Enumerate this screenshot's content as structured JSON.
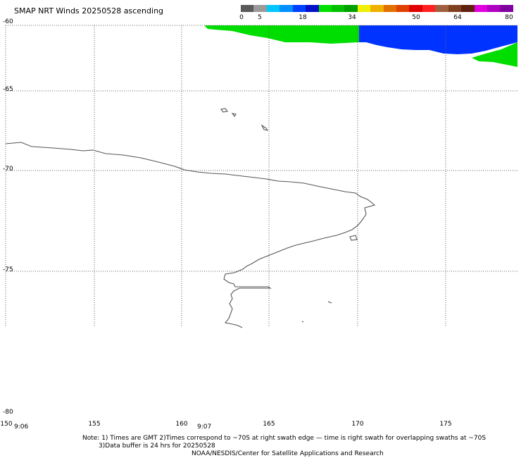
{
  "title": "SMAP NRT Winds 20250528 ascending",
  "colorbar": {
    "labels": [
      "0",
      "5",
      "18",
      "34",
      "50",
      "64",
      "80"
    ],
    "segments": [
      "#5a5a5a",
      "#9a9a9a",
      "#00c8ff",
      "#0090ff",
      "#0040ff",
      "#0010c8",
      "#00e000",
      "#00c000",
      "#00a000",
      "#f0f000",
      "#f0b000",
      "#e07000",
      "#e04000",
      "#e00000",
      "#ff2020",
      "#a06040",
      "#804020",
      "#602010",
      "#e000e0",
      "#b000c0",
      "#8000a0"
    ]
  },
  "map": {
    "lat_labels": [
      "-60",
      "-65",
      "-70",
      "-75",
      "-80"
    ],
    "lon_labels": [
      "150",
      "155",
      "160",
      "165",
      "170",
      "175"
    ],
    "swath_colors": {
      "green": "#00dd00",
      "blue": "#0033ff"
    }
  },
  "times": [
    "9:06",
    "9:07"
  ],
  "notes": {
    "line1": "Note: 1) Times are GMT 2)Times correspond to ~70S at right swath edge — time is right swath for overlapping swaths at ~70S",
    "line2": "3)Data buffer is 24 hrs for 20250528",
    "line3": "NOAA/NESDIS/Center for Satellite Applications and Research"
  }
}
